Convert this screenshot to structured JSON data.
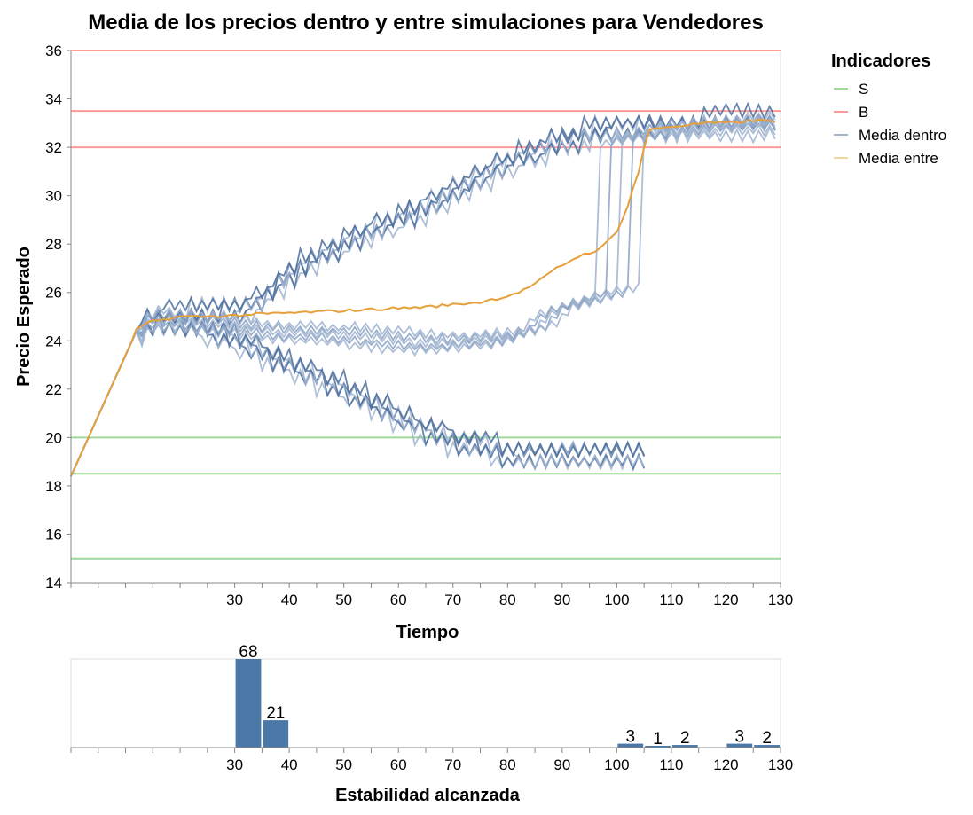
{
  "chart_data": [
    {
      "type": "line",
      "title": "Media de los precios dentro y entre simulaciones para Vendedores",
      "xlabel": "Tiempo",
      "ylabel": "Precio Esperado",
      "xlim": [
        0,
        130
      ],
      "ylim": [
        14,
        36
      ],
      "x_ticks": [
        30,
        40,
        50,
        60,
        70,
        80,
        90,
        100,
        110,
        120,
        130
      ],
      "y_ticks": [
        14,
        16,
        18,
        20,
        22,
        24,
        26,
        28,
        30,
        32,
        34,
        36
      ],
      "grid": false,
      "legend": {
        "title": "Indicadores",
        "placement": "right",
        "entries": [
          {
            "label": "S",
            "color": "#a1d99b"
          },
          {
            "label": "B",
            "color": "#fb9a99"
          },
          {
            "label": "Media dentro",
            "color": "#9fb3cf"
          },
          {
            "label": "Media entre",
            "color": "#f1d79e"
          }
        ]
      },
      "reference_lines": [
        {
          "indicator": "S",
          "y": 20,
          "color": "#a1d99b"
        },
        {
          "indicator": "S",
          "y": 18.5,
          "color": "#a1d99b"
        },
        {
          "indicator": "S",
          "y": 15,
          "color": "#a1d99b"
        },
        {
          "indicator": "B",
          "y": 36,
          "color": "#fb9a99"
        },
        {
          "indicator": "B",
          "y": 33.5,
          "color": "#fb9a99"
        },
        {
          "indicator": "B",
          "y": 32,
          "color": "#fb9a99"
        }
      ],
      "series": [
        {
          "indicator": "Media dentro",
          "group": "upper",
          "end_x": 129,
          "color": "#4c6f9c",
          "points": [
            [
              0,
              18.4
            ],
            [
              11,
              23.9
            ],
            [
              12,
              24.4
            ],
            [
              14,
              24.8
            ],
            [
              16,
              25
            ],
            [
              20,
              25.1
            ],
            [
              25,
              25.2
            ],
            [
              30,
              25.3
            ],
            [
              34,
              25.6
            ],
            [
              40,
              26.8
            ],
            [
              45,
              27.5
            ],
            [
              50,
              28.1
            ],
            [
              55,
              28.6
            ],
            [
              60,
              29.1
            ],
            [
              65,
              29.6
            ],
            [
              70,
              30.2
            ],
            [
              75,
              30.8
            ],
            [
              80,
              31.4
            ],
            [
              85,
              31.9
            ],
            [
              90,
              32.3
            ],
            [
              95,
              32.6
            ],
            [
              100,
              32.8
            ],
            [
              105,
              32.9
            ],
            [
              110,
              33
            ],
            [
              115,
              33
            ],
            [
              120,
              33.1
            ],
            [
              125,
              33.1
            ],
            [
              129,
              33.1
            ]
          ]
        },
        {
          "indicator": "Media dentro",
          "group": "lower",
          "end_x": 105,
          "color": "#4c6f9c",
          "points": [
            [
              0,
              18.4
            ],
            [
              11,
              23.9
            ],
            [
              12,
              24.4
            ],
            [
              14,
              24.8
            ],
            [
              16,
              25
            ],
            [
              20,
              24.8
            ],
            [
              25,
              24.5
            ],
            [
              30,
              24.1
            ],
            [
              35,
              23.6
            ],
            [
              40,
              23.1
            ],
            [
              45,
              22.6
            ],
            [
              50,
              22.1
            ],
            [
              55,
              21.5
            ],
            [
              60,
              20.9
            ],
            [
              65,
              20.4
            ],
            [
              70,
              20
            ],
            [
              75,
              19.7
            ],
            [
              80,
              19.4
            ],
            [
              85,
              19.3
            ],
            [
              90,
              19.3
            ],
            [
              95,
              19.3
            ],
            [
              100,
              19.3
            ],
            [
              105,
              19.3
            ]
          ]
        },
        {
          "indicator": "Media dentro",
          "group": "middle",
          "end_x": 129,
          "color": "#8aa2c4",
          "points": [
            [
              0,
              18.4
            ],
            [
              11,
              23.9
            ],
            [
              12,
              24.4
            ],
            [
              14,
              24.8
            ],
            [
              16,
              25
            ],
            [
              20,
              24.9
            ],
            [
              25,
              24.8
            ],
            [
              30,
              24.7
            ],
            [
              35,
              24.5
            ],
            [
              40,
              24.4
            ],
            [
              45,
              24.4
            ],
            [
              50,
              24.3
            ],
            [
              55,
              24.2
            ],
            [
              60,
              24.1
            ],
            [
              65,
              24
            ],
            [
              70,
              24
            ],
            [
              75,
              24.1
            ],
            [
              80,
              24.2
            ],
            [
              85,
              24.5
            ],
            [
              88,
              25.2
            ],
            [
              90,
              25.5
            ],
            [
              95,
              25.8
            ],
            [
              99,
              25.9
            ],
            [
              100,
              26
            ],
            [
              101,
              32.5
            ],
            [
              105,
              32.7
            ],
            [
              110,
              32.8
            ],
            [
              115,
              32.9
            ],
            [
              120,
              33
            ],
            [
              125,
              33.1
            ],
            [
              129,
              33.1
            ]
          ]
        },
        {
          "indicator": "Media entre",
          "color": "#e69f3a",
          "points": [
            [
              0,
              18.4
            ],
            [
              11,
              23.9
            ],
            [
              12,
              24.5
            ],
            [
              15,
              24.8
            ],
            [
              20,
              25
            ],
            [
              25,
              25
            ],
            [
              30,
              25.05
            ],
            [
              34,
              25.1
            ],
            [
              40,
              25.15
            ],
            [
              45,
              25.2
            ],
            [
              50,
              25.25
            ],
            [
              55,
              25.3
            ],
            [
              60,
              25.35
            ],
            [
              65,
              25.4
            ],
            [
              70,
              25.5
            ],
            [
              75,
              25.6
            ],
            [
              80,
              25.85
            ],
            [
              83,
              26.1
            ],
            [
              86,
              26.5
            ],
            [
              89,
              27
            ],
            [
              93,
              27.5
            ],
            [
              97,
              27.8
            ],
            [
              100,
              28.5
            ],
            [
              102,
              29.6
            ],
            [
              104,
              31
            ],
            [
              105,
              32
            ],
            [
              106,
              32.7
            ],
            [
              108,
              32.8
            ],
            [
              112,
              32.9
            ],
            [
              116,
              33
            ],
            [
              120,
              33
            ],
            [
              125,
              33.1
            ],
            [
              129,
              33.1
            ]
          ]
        }
      ]
    },
    {
      "type": "bar",
      "xlabel": "Estabilidad alcanzada",
      "ylabel": "",
      "xlim": [
        0,
        130
      ],
      "x_ticks": [
        30,
        40,
        50,
        60,
        70,
        80,
        90,
        100,
        110,
        120,
        130
      ],
      "bin_width": 5,
      "bars": [
        {
          "bin_start": 30,
          "value": 68
        },
        {
          "bin_start": 35,
          "value": 21
        },
        {
          "bin_start": 100,
          "value": 3
        },
        {
          "bin_start": 105,
          "value": 1
        },
        {
          "bin_start": 110,
          "value": 2
        },
        {
          "bin_start": 120,
          "value": 3
        },
        {
          "bin_start": 125,
          "value": 2
        }
      ],
      "ylim": [
        0,
        68
      ],
      "color": "#4c78a8"
    }
  ]
}
